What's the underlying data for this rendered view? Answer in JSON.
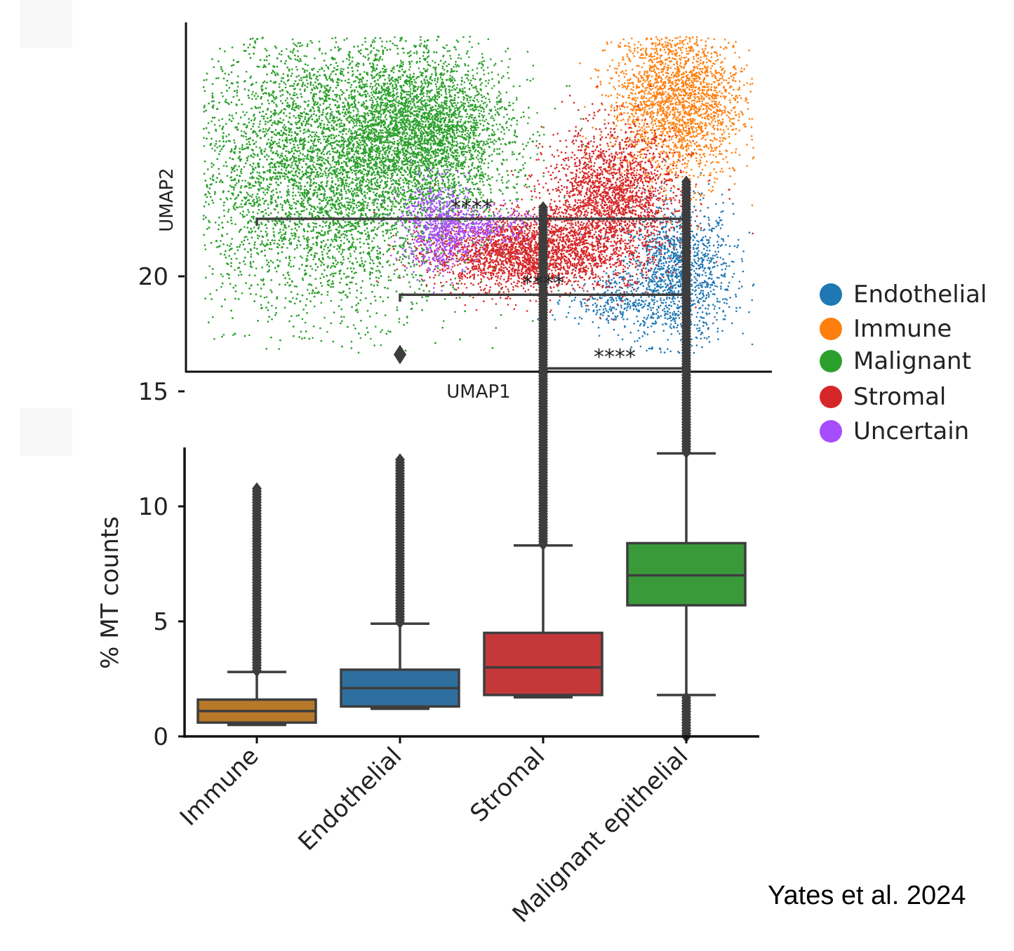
{
  "chart_data": [
    {
      "type": "scatter",
      "xlabel": "UMAP1",
      "ylabel": "UMAP2",
      "ticks_shown": false,
      "legend_position": "right",
      "series": [
        {
          "name": "Endothelial",
          "color": "#1f77b4",
          "clusters": [
            {
              "cx": 0.86,
              "cy": 0.25,
              "sx": 0.05,
              "sy": 0.11,
              "n": 1400
            },
            {
              "cx": 0.74,
              "cy": 0.17,
              "sx": 0.04,
              "sy": 0.04,
              "n": 250
            }
          ]
        },
        {
          "name": "Immune",
          "color": "#ff7f0e",
          "clusters": [
            {
              "cx": 0.86,
              "cy": 0.8,
              "sx": 0.06,
              "sy": 0.13,
              "n": 2400
            }
          ]
        },
        {
          "name": "Malignant",
          "color": "#2ca02c",
          "clusters": [
            {
              "cx": 0.23,
              "cy": 0.58,
              "sx": 0.13,
              "sy": 0.22,
              "n": 9000
            },
            {
              "cx": 0.4,
              "cy": 0.7,
              "sx": 0.08,
              "sy": 0.12,
              "n": 3000
            }
          ]
        },
        {
          "name": "Stromal",
          "color": "#d62728",
          "clusters": [
            {
              "cx": 0.58,
              "cy": 0.32,
              "sx": 0.08,
              "sy": 0.06,
              "n": 2400
            },
            {
              "cx": 0.74,
              "cy": 0.48,
              "sx": 0.06,
              "sy": 0.11,
              "n": 2200
            }
          ]
        },
        {
          "name": "Uncertain",
          "color": "#a64dff",
          "clusters": [
            {
              "cx": 0.43,
              "cy": 0.4,
              "sx": 0.035,
              "sy": 0.07,
              "n": 700
            },
            {
              "cx": 0.51,
              "cy": 0.4,
              "sx": 0.04,
              "sy": 0.03,
              "n": 250
            }
          ]
        }
      ]
    },
    {
      "type": "box",
      "ylabel": "% MT counts",
      "xlabel": "",
      "ylim": [
        0,
        24.5
      ],
      "yticks": [
        0,
        5,
        10,
        15,
        20
      ],
      "categories": [
        "Immune",
        "Endothelial",
        "Stromal",
        "Malignant epithelial"
      ],
      "boxes": [
        {
          "name": "Immune",
          "color": "#b8782a",
          "whisker_low": 0.5,
          "q1": 0.6,
          "median": 1.1,
          "q3": 1.6,
          "whisker_high": 2.8,
          "outlier_max": 10.8
        },
        {
          "name": "Endothelial",
          "color": "#2f6f9f",
          "whisker_low": 1.2,
          "q1": 1.3,
          "median": 2.1,
          "q3": 2.9,
          "whisker_high": 4.9,
          "outlier_max": 12.1,
          "extra_outliers": [
            16.6
          ]
        },
        {
          "name": "Stromal",
          "color": "#c4383a",
          "whisker_low": 1.7,
          "q1": 1.8,
          "median": 3.0,
          "q3": 4.5,
          "whisker_high": 8.3,
          "outlier_max": 23.0
        },
        {
          "name": "Malignant epithelial",
          "color": "#3a9a3a",
          "whisker_low": 1.8,
          "q1": 5.7,
          "median": 7.0,
          "q3": 8.4,
          "whisker_high": 12.3,
          "outlier_max": 24.2,
          "low_outliers": [
            0,
            1.8
          ]
        }
      ],
      "significance": [
        {
          "from": "Immune",
          "to": "Malignant epithelial",
          "y": 22.5,
          "label": "****"
        },
        {
          "from": "Endothelial",
          "to": "Malignant epithelial",
          "y": 19.2,
          "label": "****"
        },
        {
          "from": "Stromal",
          "to": "Malignant epithelial",
          "y": 16.0,
          "label": "****"
        }
      ]
    }
  ],
  "legend": [
    {
      "label": "Endothelial",
      "color": "#1f77b4"
    },
    {
      "label": "Immune",
      "color": "#ff7f0e"
    },
    {
      "label": "Malignant",
      "color": "#2ca02c"
    },
    {
      "label": "Stromal",
      "color": "#d62728"
    },
    {
      "label": "Uncertain",
      "color": "#a64dff"
    }
  ],
  "credit": "Yates et al. 2024"
}
